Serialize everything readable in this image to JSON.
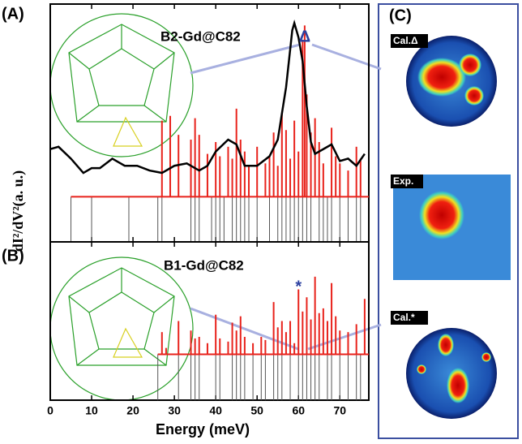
{
  "panel_labels": {
    "a": "(A)",
    "b": "(B)",
    "c": "(C)"
  },
  "x_label": "Energy (meV)",
  "y_label": "dI²/dV²(a. u.)",
  "chart_data": [
    {
      "type": "stick",
      "title": "B2-Gd@C82",
      "marker": "Δ",
      "marker_x": 61.5,
      "xlim": [
        0,
        77
      ],
      "xticks": [
        0,
        10,
        20,
        30,
        40,
        50,
        60,
        70
      ],
      "ylim": [
        0,
        10
      ],
      "curve": {
        "color": "#000000",
        "x": [
          0,
          2,
          5,
          8,
          10,
          12,
          15,
          18,
          21,
          24,
          27,
          30,
          33,
          36,
          38,
          40,
          43,
          45,
          47,
          50,
          53,
          55,
          57,
          58.5,
          59,
          60,
          61,
          62,
          63,
          64,
          66,
          68,
          70,
          72,
          74,
          76
        ],
        "values": [
          3.9,
          4.0,
          3.5,
          2.9,
          3.1,
          3.1,
          3.5,
          3.2,
          3.2,
          3.0,
          2.9,
          3.2,
          3.3,
          3.0,
          3.2,
          3.8,
          4.3,
          4.1,
          3.2,
          3.2,
          3.6,
          4.3,
          6.5,
          8.9,
          9.2,
          8.6,
          7.6,
          5.7,
          4.2,
          3.7,
          3.9,
          4.1,
          3.4,
          3.5,
          3.2,
          3.7
        ]
      },
      "red_sticks": {
        "color": "#e8221b",
        "base": 1.9,
        "x": [
          27,
          29,
          31,
          34,
          35,
          36,
          38,
          40,
          41,
          43,
          44,
          45,
          46,
          47,
          48,
          50,
          52,
          53,
          54,
          55,
          56,
          57,
          58,
          59,
          60,
          61,
          61.5,
          62,
          63,
          64,
          65,
          66,
          68,
          69,
          70,
          72,
          74,
          75
        ],
        "values": [
          5.1,
          5.3,
          4.5,
          4.3,
          5.2,
          4.5,
          3.7,
          4.2,
          3.6,
          4.0,
          3.5,
          5.6,
          4.3,
          3.8,
          3.2,
          4.0,
          3.3,
          3.6,
          4.6,
          3.2,
          5.4,
          4.7,
          3.5,
          5.1,
          3.8,
          8.5,
          9.1,
          6.2,
          4.6,
          5.2,
          4.2,
          3.3,
          4.8,
          3.6,
          3.3,
          3.0,
          4.0,
          3.5
        ]
      },
      "black_sticks": {
        "color": "#555555",
        "x": [
          5,
          10,
          19,
          26,
          27,
          34,
          35,
          36,
          39,
          40,
          41,
          42,
          44,
          45,
          46,
          47,
          48,
          50,
          53,
          55,
          56,
          57,
          58,
          59,
          60,
          61,
          62,
          63,
          65,
          66,
          67,
          68,
          70,
          72,
          74,
          75
        ]
      }
    },
    {
      "type": "stick",
      "title": "B1-Gd@C82",
      "marker": "*",
      "marker_x": 60,
      "xlim": [
        0,
        77
      ],
      "xticks": [
        0,
        10,
        20,
        30,
        40,
        50,
        60,
        70
      ],
      "ylim": [
        0,
        10
      ],
      "red_sticks": {
        "color": "#e8221b",
        "base": 2.9,
        "x": [
          27,
          28,
          31,
          34,
          35,
          36,
          38,
          40,
          41,
          43,
          44,
          45,
          46,
          47,
          49,
          51,
          52,
          54,
          55,
          56,
          57,
          58,
          59,
          60,
          61,
          62,
          63,
          64,
          65,
          66,
          67,
          68,
          69,
          70,
          72,
          74,
          76
        ],
        "values": [
          4.3,
          3.3,
          5.0,
          4.4,
          3.9,
          4.0,
          3.6,
          5.4,
          3.9,
          3.7,
          4.9,
          4.4,
          5.3,
          4.0,
          3.6,
          4.0,
          3.8,
          6.2,
          4.6,
          5.0,
          4.3,
          5.0,
          3.6,
          7.0,
          5.6,
          6.5,
          5.1,
          7.8,
          5.5,
          5.8,
          5.0,
          7.4,
          5.3,
          4.4,
          4.3,
          4.8,
          6.4
        ]
      },
      "black_sticks": {
        "color": "#555555",
        "x": [
          26,
          31,
          34,
          35,
          36,
          40,
          41,
          44,
          45,
          46,
          47,
          49,
          51,
          52,
          54,
          55,
          56,
          58,
          60,
          61,
          62,
          63,
          64,
          65,
          67,
          68,
          70,
          72,
          74,
          75
        ]
      }
    }
  ],
  "images": [
    {
      "label": "Cal.Δ"
    },
    {
      "label": "Exp."
    },
    {
      "label": "Cal.*"
    }
  ]
}
